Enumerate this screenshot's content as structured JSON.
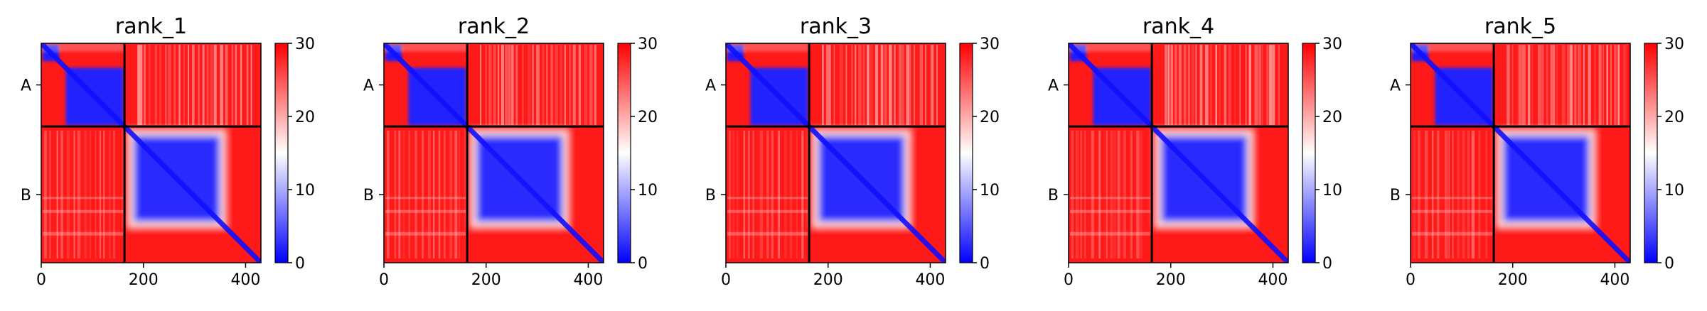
{
  "chart_data": [
    {
      "type": "heatmap",
      "title": "rank_1",
      "x_ticks": [
        0,
        200,
        400
      ],
      "y_ticks": [
        "A",
        "B"
      ],
      "chain_boundary": 163,
      "length": 430,
      "colorbar": {
        "min": 0,
        "max": 30,
        "ticks": [
          0,
          10,
          20,
          30
        ],
        "cmap": [
          "#0000ff",
          "#ffffff",
          "#ff0000"
        ]
      }
    },
    {
      "type": "heatmap",
      "title": "rank_2",
      "x_ticks": [
        0,
        200,
        400
      ],
      "y_ticks": [
        "A",
        "B"
      ],
      "chain_boundary": 163,
      "length": 430,
      "colorbar": {
        "min": 0,
        "max": 30,
        "ticks": [
          0,
          10,
          20,
          30
        ],
        "cmap": [
          "#0000ff",
          "#ffffff",
          "#ff0000"
        ]
      }
    },
    {
      "type": "heatmap",
      "title": "rank_3",
      "x_ticks": [
        0,
        200,
        400
      ],
      "y_ticks": [
        "A",
        "B"
      ],
      "chain_boundary": 163,
      "length": 430,
      "colorbar": {
        "min": 0,
        "max": 30,
        "ticks": [
          0,
          10,
          20,
          30
        ],
        "cmap": [
          "#0000ff",
          "#ffffff",
          "#ff0000"
        ]
      }
    },
    {
      "type": "heatmap",
      "title": "rank_4",
      "x_ticks": [
        0,
        200,
        400
      ],
      "y_ticks": [
        "A",
        "B"
      ],
      "chain_boundary": 163,
      "length": 430,
      "colorbar": {
        "min": 0,
        "max": 30,
        "ticks": [
          0,
          10,
          20,
          30
        ],
        "cmap": [
          "#0000ff",
          "#ffffff",
          "#ff0000"
        ]
      }
    },
    {
      "type": "heatmap",
      "title": "rank_5",
      "x_ticks": [
        0,
        200,
        400
      ],
      "y_ticks": [
        "A",
        "B"
      ],
      "chain_boundary": 163,
      "length": 430,
      "colorbar": {
        "min": 0,
        "max": 30,
        "ticks": [
          0,
          10,
          20,
          30
        ],
        "cmap": [
          "#0000ff",
          "#ffffff",
          "#ff0000"
        ]
      }
    }
  ]
}
